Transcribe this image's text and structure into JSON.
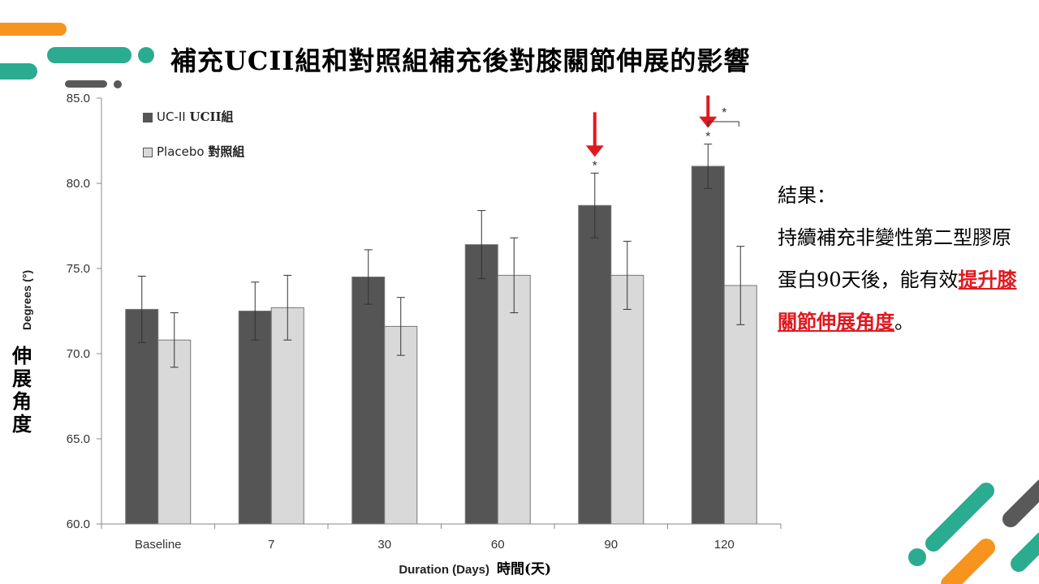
{
  "title": "補充UCII組和對照組補充後對膝關節伸展的影響",
  "side_text": {
    "heading": "結果：",
    "body_prefix": "持續補充非變性第二型膠原蛋白90天後，能有效",
    "highlight": "提升膝關節伸展角度",
    "suffix": "。"
  },
  "y_label_cn": "伸展角度",
  "chart_data": {
    "type": "bar",
    "categories": [
      "Baseline",
      "7",
      "30",
      "60",
      "90",
      "120"
    ],
    "series": [
      {
        "name": "UC-II UCII組",
        "values": [
          72.6,
          72.5,
          74.5,
          76.4,
          78.7,
          81.0
        ],
        "errors": [
          1.95,
          1.7,
          1.6,
          2.0,
          1.9,
          1.3
        ],
        "color": "#555555"
      },
      {
        "name": "Placebo 對照組",
        "values": [
          70.8,
          72.7,
          71.6,
          74.6,
          74.6,
          74.0
        ],
        "errors": [
          1.6,
          1.9,
          1.7,
          2.2,
          2.0,
          2.3
        ],
        "color": "#d9d9d9"
      }
    ],
    "ylim": [
      60,
      85
    ],
    "yticks": [
      "60.0",
      "65.0",
      "70.0",
      "75.0",
      "80.0",
      "85.0"
    ],
    "ylabel": "Degrees (°)",
    "xlabel": "Duration (Days)",
    "xlabel_cn": "時間(天)",
    "legend": {
      "series1_en": "UC-II",
      "series1_cn": "UCII組",
      "series2_en": "Placebo",
      "series2_cn": "對照組"
    },
    "significance_marker": "*",
    "arrow_color": "#e0191f"
  }
}
